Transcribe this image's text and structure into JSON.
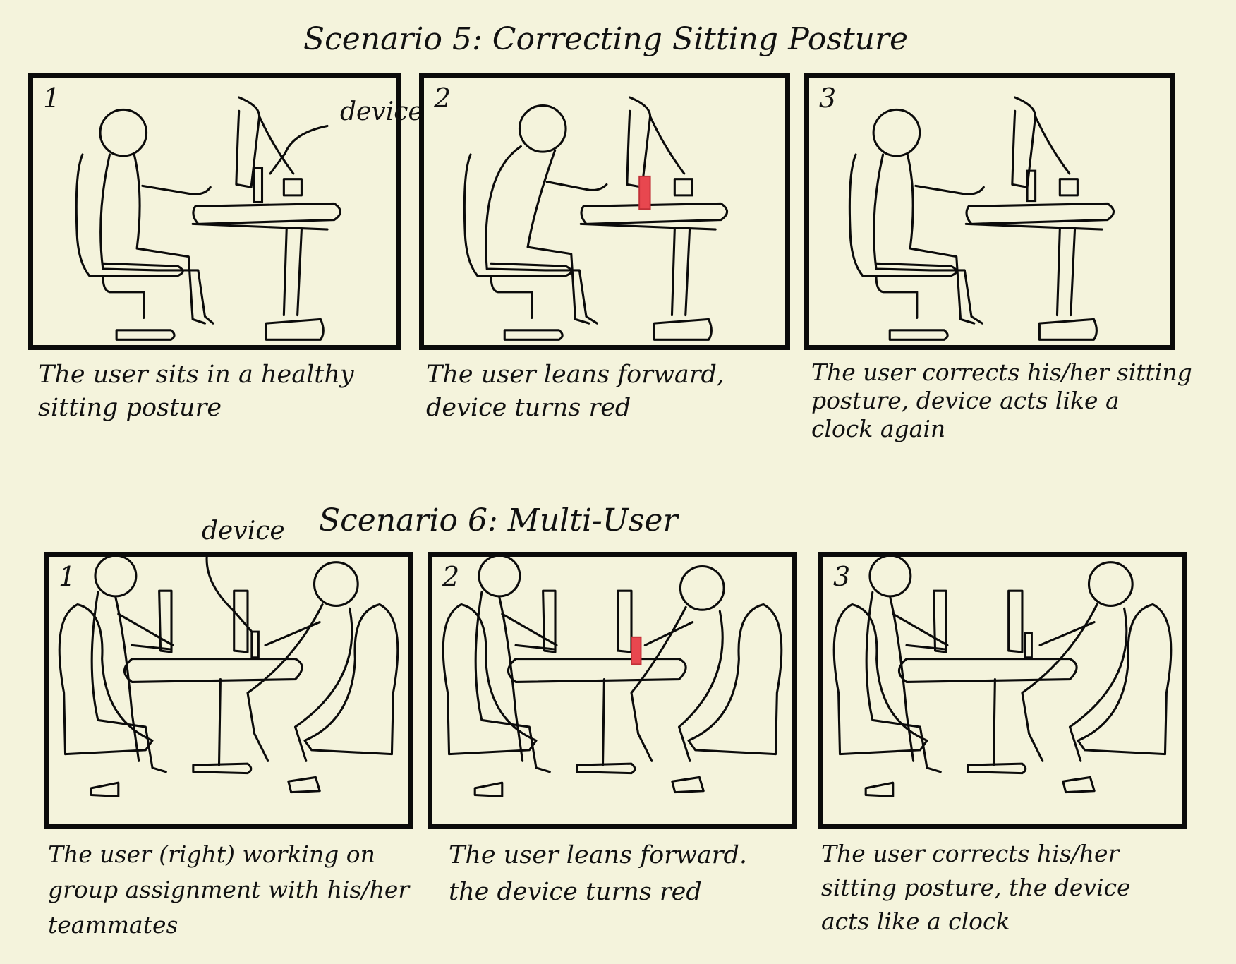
{
  "scenario5": {
    "title": "Scenario 5: Correcting Sitting Posture",
    "device_label": "device",
    "panels": [
      {
        "number": "1",
        "caption_lines": [
          "The user sits in a healthy",
          "sitting posture"
        ],
        "device_color": "#0b0b0b"
      },
      {
        "number": "2",
        "caption_lines": [
          "The user leans forward,",
          "device turns red"
        ],
        "device_color": "#e8474f"
      },
      {
        "number": "3",
        "caption_lines": [
          "The user corrects his/her sitting",
          "posture, device acts like a",
          "clock again"
        ],
        "device_color": "#0b0b0b"
      }
    ]
  },
  "scenario6": {
    "title": "Scenario 6: Multi-User",
    "device_label": "device",
    "panels": [
      {
        "number": "1",
        "caption_lines": [
          "The user (right) working on",
          "group assignment with his/her",
          "teammates"
        ],
        "device_color": "#0b0b0b"
      },
      {
        "number": "2",
        "caption_lines": [
          "The user leans forward.",
          "the device turns red"
        ],
        "device_color": "#e8474f"
      },
      {
        "number": "3",
        "caption_lines": [
          "The user corrects his/her",
          "sitting posture, the device",
          "acts like a clock"
        ],
        "device_color": "#0b0b0b"
      }
    ]
  }
}
